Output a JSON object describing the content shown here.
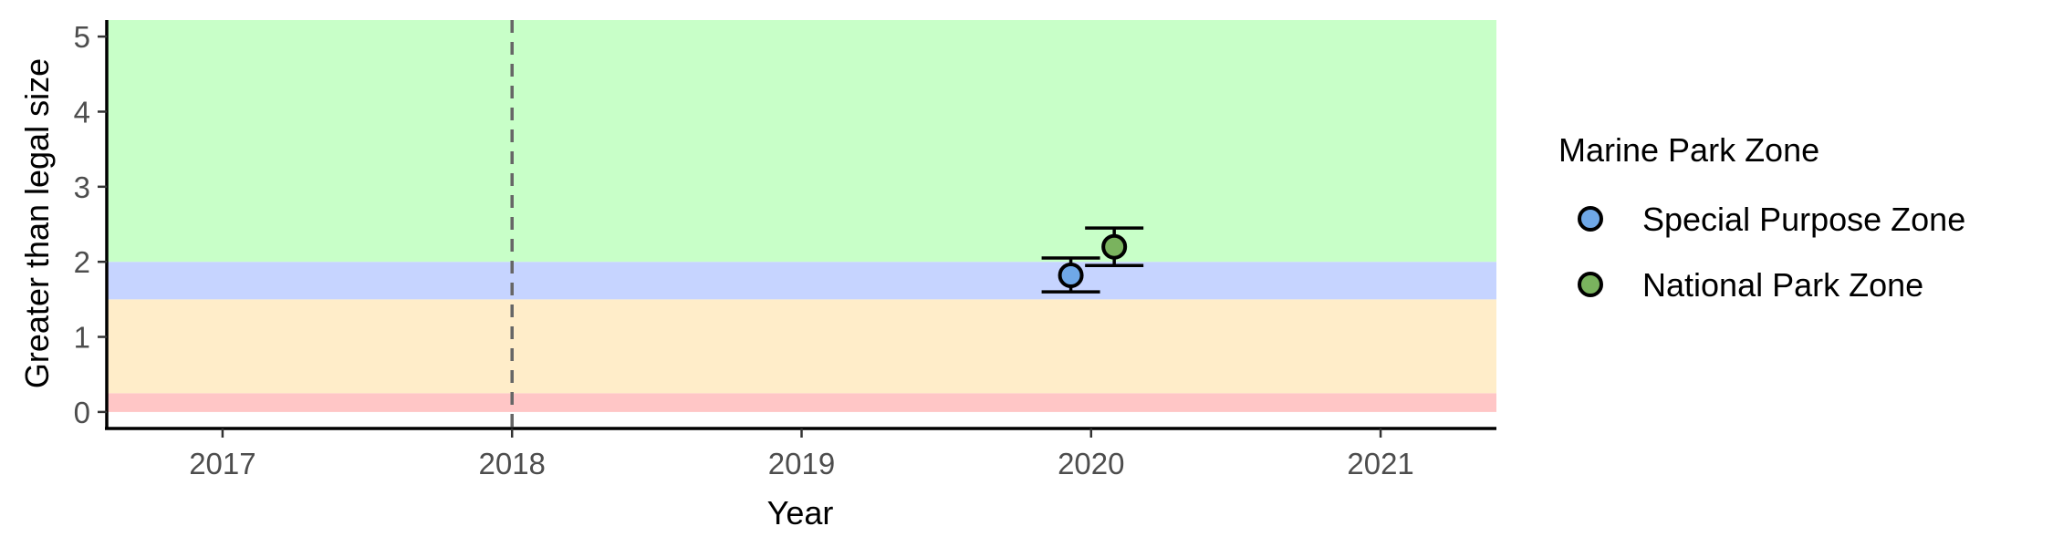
{
  "chart_data": {
    "type": "scatter",
    "title": "",
    "xlabel": "Year",
    "ylabel": "Greater than legal size",
    "xlim": [
      2016.6,
      2021.4
    ],
    "ylim": [
      -0.22,
      5.22
    ],
    "xticks": [
      2017,
      2018,
      2019,
      2020,
      2021
    ],
    "yticks": [
      0,
      1,
      2,
      3,
      4,
      5
    ],
    "grid": false,
    "vline": {
      "x": 2018,
      "style": "dashed",
      "color": "#666666"
    },
    "bands": [
      {
        "ymin": 0,
        "ymax": 0.25,
        "color": "#ffc6c6"
      },
      {
        "ymin": 0.25,
        "ymax": 1.5,
        "color": "#ffedc9"
      },
      {
        "ymin": 1.5,
        "ymax": 2.0,
        "color": "#c6d4ff"
      },
      {
        "ymin": 2.0,
        "ymax": 5.22,
        "color": "#c8ffc8"
      }
    ],
    "legend": {
      "title": "Marine Park Zone",
      "position": "right"
    },
    "series": [
      {
        "name": "Special Purpose Zone",
        "color": "#6fa8e8",
        "points": [
          {
            "x": 2019.93,
            "y": 1.82,
            "ymin": 1.6,
            "ymax": 2.05
          }
        ]
      },
      {
        "name": "National Park Zone",
        "color": "#7ab35e",
        "points": [
          {
            "x": 2020.08,
            "y": 2.2,
            "ymin": 1.95,
            "ymax": 2.45
          }
        ]
      }
    ]
  }
}
